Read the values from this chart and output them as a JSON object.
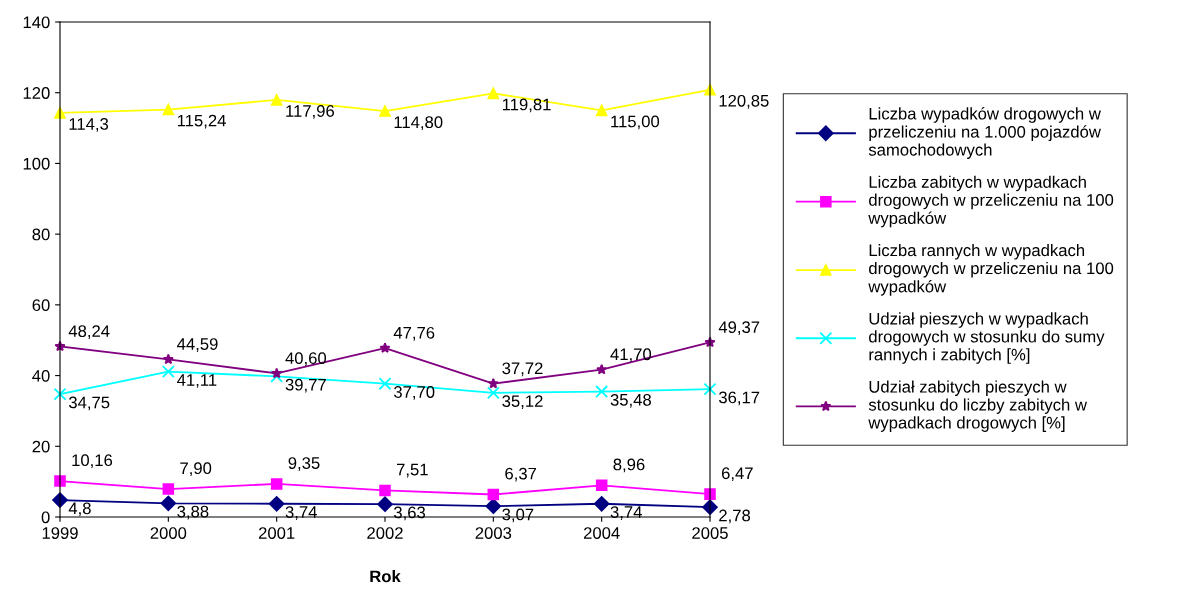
{
  "chart_data": {
    "type": "line",
    "xlabel": "Rok",
    "categories": [
      "1999",
      "2000",
      "2001",
      "2002",
      "2003",
      "2004",
      "2005"
    ],
    "ylim": [
      0,
      140
    ],
    "yticks": [
      0,
      20,
      40,
      60,
      80,
      100,
      120,
      140
    ],
    "grid": false,
    "legend": "right",
    "series": [
      {
        "name": "Liczba wypadków drogowych w\nprzeliczeniu na 1.000 pojazdów\nsamochodowych",
        "color": "#000080",
        "marker": "diamond",
        "values": [
          4.8,
          3.88,
          3.74,
          3.63,
          3.07,
          3.74,
          2.78
        ],
        "value_labels": [
          "4,8",
          "3,88",
          "3,74",
          "3,63",
          "3,07",
          "3,74",
          "2,78"
        ]
      },
      {
        "name": "Liczba zabitych w wypadkach\ndrogowych w przeliczeniu na 100\nwypadków",
        "color": "#ff00ff",
        "marker": "square",
        "values": [
          10.16,
          7.9,
          9.35,
          7.51,
          6.37,
          8.96,
          6.47
        ],
        "value_labels": [
          "10,16",
          "7,90",
          "9,35",
          "7,51",
          "6,37",
          "8,96",
          "6,47"
        ]
      },
      {
        "name": "Liczba rannych w wypadkach\ndrogowych w przeliczeniu na 100\nwypadków",
        "color": "#ffff00",
        "marker": "triangle",
        "values": [
          114.3,
          115.24,
          117.96,
          114.8,
          119.81,
          115.0,
          120.85
        ],
        "value_labels": [
          "114,3",
          "115,24",
          "117,96",
          "114,80",
          "119,81",
          "115,00",
          "120,85"
        ]
      },
      {
        "name": "Udział pieszych w wypadkach\ndrogowych w stosunku do sumy\nrannych i zabitych [%]",
        "color": "#00ffff",
        "marker": "cross",
        "values": [
          34.75,
          41.11,
          39.77,
          37.7,
          35.12,
          35.48,
          36.17
        ],
        "value_labels": [
          "34,75",
          "41,11",
          "39,77",
          "37,70",
          "35,12",
          "35,48",
          "36,17"
        ]
      },
      {
        "name": "Udział zabitych pieszych w\nstosunku do liczby zabitych w\nwypadkach drogowych [%]",
        "color": "#800080",
        "marker": "star",
        "values": [
          48.24,
          44.59,
          40.6,
          47.76,
          37.72,
          41.7,
          49.37
        ],
        "value_labels": [
          "48,24",
          "44,59",
          "40,60",
          "47,76",
          "37,72",
          "41,70",
          "49,37"
        ]
      }
    ]
  }
}
